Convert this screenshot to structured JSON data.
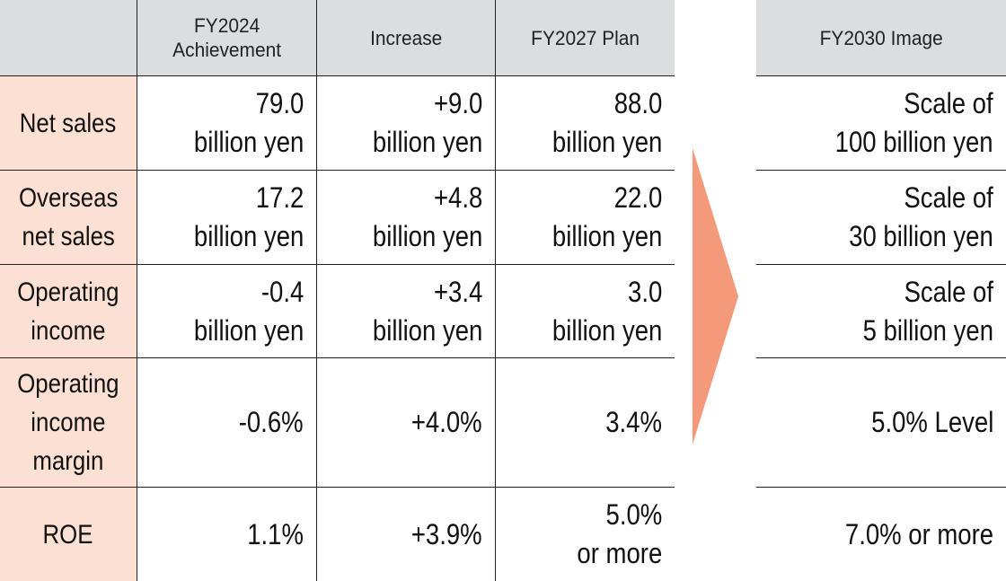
{
  "header": {
    "col1": "FY2024\nAchievement",
    "col2": "Increase",
    "col3": "FY2027 Plan",
    "col4": "FY2030 Image"
  },
  "rows": [
    {
      "label": "Net sales",
      "fy2024": "79.0\nbillion yen",
      "increase": "+9.0\nbillion yen",
      "fy2027": "88.0\nbillion yen",
      "fy2030": "Scale of\n100 billion yen"
    },
    {
      "label": "Overseas\nnet sales",
      "fy2024": "17.2\nbillion yen",
      "increase": "+4.8\nbillion yen",
      "fy2027": "22.0\nbillion yen",
      "fy2030": "Scale of\n30 billion yen"
    },
    {
      "label": "Operating\nincome",
      "fy2024": "-0.4\nbillion yen",
      "increase": "+3.4\nbillion yen",
      "fy2027": "3.0\nbillion yen",
      "fy2030": "Scale of\n5 billion yen"
    },
    {
      "label": "Operating\nincome\nmargin",
      "fy2024": "-0.6%",
      "increase": "+4.0%",
      "fy2027": "3.4%",
      "fy2030": "5.0% Level"
    },
    {
      "label": "ROE",
      "fy2024": "1.1%",
      "increase": "+3.9%",
      "fy2027": "5.0%\nor more",
      "fy2030": "7.0% or more"
    }
  ],
  "colors": {
    "header_bg": "#dcdddf",
    "label_bg": "#fde0d4",
    "arrow": "#f4997a"
  },
  "arrow_icon": "right-arrow"
}
